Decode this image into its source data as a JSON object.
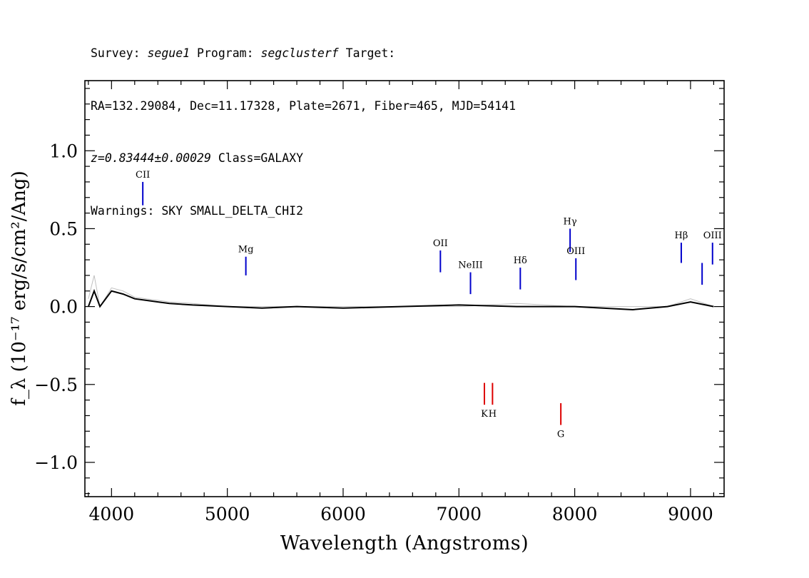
{
  "header": {
    "line1": {
      "survey_label": "Survey: ",
      "survey": "segue1",
      "program_label": " Program: ",
      "program": "segclusterf",
      "target_label": " Target:"
    },
    "line2": "RA=132.29084, Dec=11.17328, Plate=2671, Fiber=465, MJD=54141",
    "line3": {
      "z": "z=0.83444±0.00029",
      "class": " Class=GALAXY"
    },
    "line4": "Warnings: SKY SMALL_DELTA_CHI2"
  },
  "chart_data": {
    "type": "line",
    "title": "",
    "xlabel": "Wavelength (Angstroms)",
    "ylabel": "f_λ (10⁻¹⁷ erg/s/cm²/Ang)",
    "xlim": [
      3770,
      9290
    ],
    "ylim": [
      -1.22,
      1.45
    ],
    "xticks": [
      4000,
      5000,
      6000,
      7000,
      8000,
      9000
    ],
    "xtick_labels": [
      "4000",
      "5000",
      "6000",
      "7000",
      "8000",
      "9000"
    ],
    "yticks": [
      -1.0,
      -0.5,
      0.0,
      0.5,
      1.0
    ],
    "ytick_labels": [
      "−1.0",
      "−0.5",
      "0.0",
      "0.5",
      "1.0"
    ],
    "grid": false,
    "series": [
      {
        "color": "#c0c0c0",
        "x": [
          3800,
          3850,
          3900,
          4000,
          4100,
          4200,
          4300,
          4400,
          4500,
          4700,
          5000,
          5300,
          5600,
          6000,
          6500,
          7000,
          7500,
          8000,
          8500,
          8800,
          9000,
          9200
        ],
        "values": [
          0.05,
          0.2,
          0.0,
          0.12,
          0.1,
          0.06,
          0.05,
          0.04,
          0.03,
          0.02,
          0.0,
          0.0,
          0.0,
          0.0,
          0.0,
          0.0,
          0.02,
          0.0,
          0.0,
          0.0,
          0.05,
          0.0
        ]
      },
      {
        "color": "#000000",
        "x": [
          3800,
          3850,
          3900,
          4000,
          4100,
          4200,
          4300,
          4400,
          4500,
          4700,
          5000,
          5300,
          5600,
          6000,
          6500,
          7000,
          7500,
          8000,
          8500,
          8800,
          9000,
          9200
        ],
        "values": [
          0.0,
          0.1,
          0.0,
          0.1,
          0.08,
          0.05,
          0.04,
          0.03,
          0.02,
          0.01,
          0.0,
          -0.01,
          0.0,
          -0.01,
          0.0,
          0.01,
          0.0,
          0.0,
          -0.02,
          0.0,
          0.03,
          0.0
        ]
      }
    ],
    "annotations": [
      {
        "label": "CII",
        "x": 4270,
        "y_top": 0.8,
        "y_bottom": 0.65,
        "color": "#0000cc",
        "label_pos": "above"
      },
      {
        "label": "Mg",
        "x": 5160,
        "y_top": 0.32,
        "y_bottom": 0.2,
        "color": "#0000cc",
        "label_pos": "above"
      },
      {
        "label": "OII",
        "x": 6840,
        "y_top": 0.36,
        "y_bottom": 0.22,
        "color": "#0000cc",
        "label_pos": "above"
      },
      {
        "label": "NeIII",
        "x": 7100,
        "y_top": 0.22,
        "y_bottom": 0.08,
        "color": "#0000cc",
        "label_pos": "above"
      },
      {
        "label": "Hδ",
        "x": 7530,
        "y_top": 0.25,
        "y_bottom": 0.11,
        "color": "#0000cc",
        "label_pos": "above"
      },
      {
        "label": "Hγ",
        "x": 7960,
        "y_top": 0.5,
        "y_bottom": 0.35,
        "color": "#0000cc",
        "label_pos": "above"
      },
      {
        "label": "OIII",
        "x": 8010,
        "y_top": 0.31,
        "y_bottom": 0.17,
        "color": "#0000cc",
        "label_pos": "above"
      },
      {
        "label": "Hβ",
        "x": 8920,
        "y_top": 0.41,
        "y_bottom": 0.28,
        "color": "#0000cc",
        "label_pos": "above"
      },
      {
        "label": "",
        "x": 9100,
        "y_top": 0.28,
        "y_bottom": 0.14,
        "color": "#0000cc",
        "label_pos": "above"
      },
      {
        "label": "OIII",
        "x": 9190,
        "y_top": 0.41,
        "y_bottom": 0.27,
        "color": "#0000cc",
        "label_pos": "above"
      },
      {
        "label": "K",
        "x": 7220,
        "y_top": -0.49,
        "y_bottom": -0.63,
        "color": "#dd0000",
        "label_pos": "below"
      },
      {
        "label": "H",
        "x": 7290,
        "y_top": -0.49,
        "y_bottom": -0.63,
        "color": "#dd0000",
        "label_pos": "below"
      },
      {
        "label": "G",
        "x": 7880,
        "y_top": -0.62,
        "y_bottom": -0.76,
        "color": "#dd0000",
        "label_pos": "below"
      }
    ]
  }
}
